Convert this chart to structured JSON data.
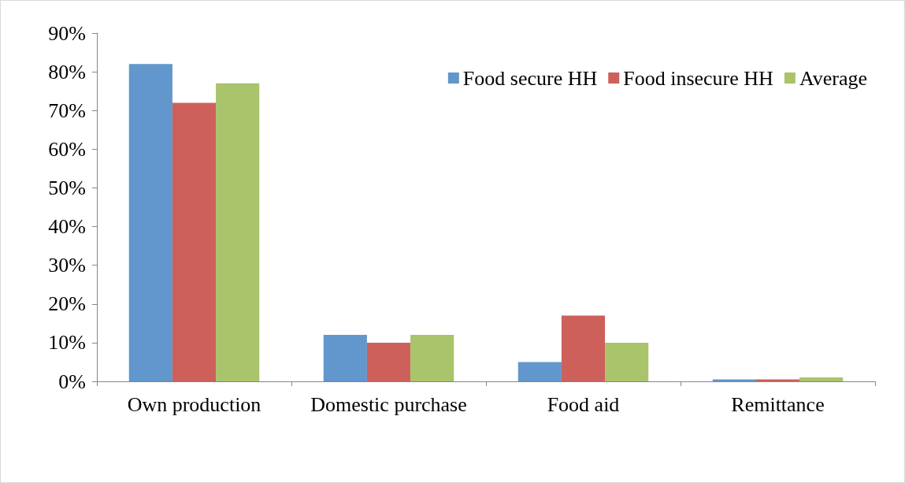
{
  "chart_data": {
    "type": "bar",
    "categories": [
      "Own production",
      "Domestic purchase",
      "Food aid",
      "Remittance"
    ],
    "series": [
      {
        "name": "Food secure HH",
        "color": "#6197cc",
        "values": [
          82,
          12,
          5,
          0.5
        ]
      },
      {
        "name": "Food insecure HH",
        "color": "#cd605b",
        "values": [
          72,
          10,
          17,
          0.5
        ]
      },
      {
        "name": "Average",
        "color": "#a9c46a",
        "values": [
          77,
          12,
          10,
          1
        ]
      }
    ],
    "ylim": [
      0,
      90
    ],
    "yticks": [
      {
        "value": 0,
        "label": "0%"
      },
      {
        "value": 10,
        "label": "10%"
      },
      {
        "value": 20,
        "label": "20%"
      },
      {
        "value": 30,
        "label": "30%"
      },
      {
        "value": 40,
        "label": "40%"
      },
      {
        "value": 50,
        "label": "50%"
      },
      {
        "value": 60,
        "label": "60%"
      },
      {
        "value": 70,
        "label": "70%"
      },
      {
        "value": 80,
        "label": "80%"
      },
      {
        "value": 90,
        "label": "90%"
      }
    ],
    "grid": false,
    "legend": "top right"
  }
}
